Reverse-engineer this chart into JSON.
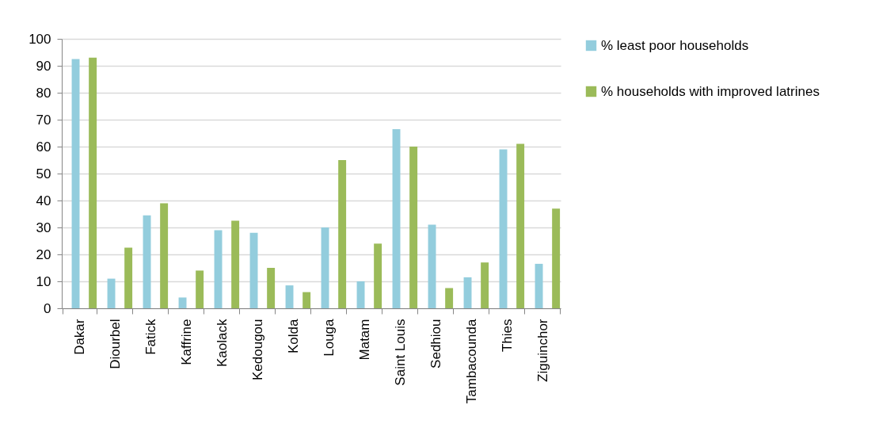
{
  "chart_data": {
    "type": "bar",
    "categories": [
      "Dakar",
      "Diourbel",
      "Fatick",
      "Kaffrine",
      "Kaolack",
      "Kedougou",
      "Kolda",
      "Louga",
      "Matam",
      "Saint Louis",
      "Sedhiou",
      "Tambacounda",
      "Thies",
      "Ziguinchor"
    ],
    "series": [
      {
        "name": "% least poor households",
        "color": "#93cddd",
        "values": [
          92.5,
          11,
          34.5,
          4,
          29,
          28,
          8.5,
          30,
          10,
          66.5,
          31,
          11.5,
          59,
          16.5
        ]
      },
      {
        "name": "% households with improved latrines",
        "color": "#9bbb59",
        "values": [
          93,
          22.5,
          39,
          14,
          32.5,
          15,
          6,
          55,
          24,
          60,
          7.5,
          17,
          61,
          37
        ]
      }
    ],
    "ylim": [
      0,
      100
    ],
    "yticks": [
      0,
      10,
      20,
      30,
      40,
      50,
      60,
      70,
      80,
      90,
      100
    ],
    "grid": "y",
    "legend": "right"
  }
}
